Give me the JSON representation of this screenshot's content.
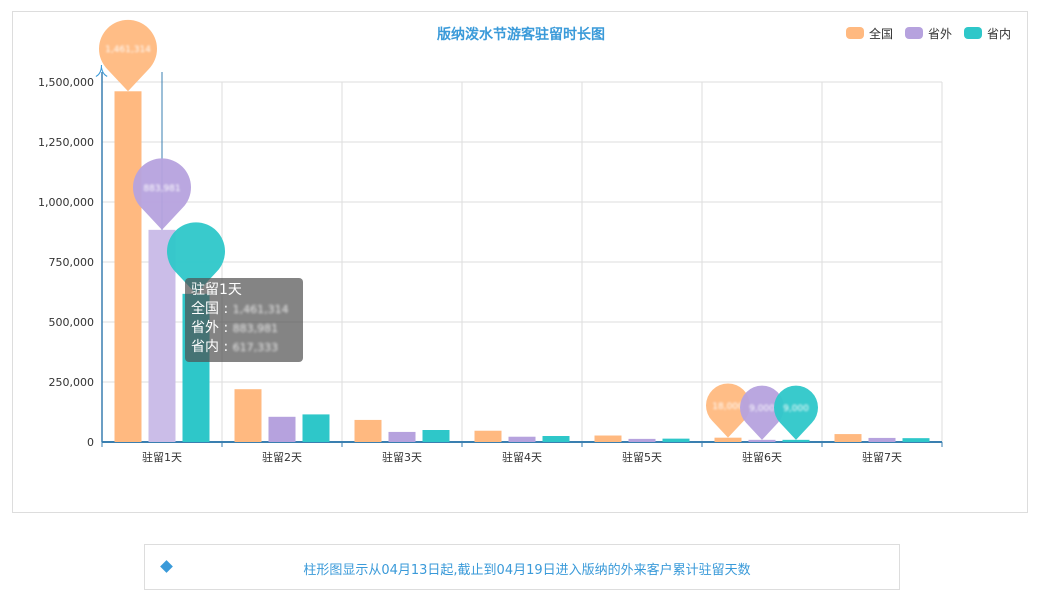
{
  "chart_data": {
    "type": "bar",
    "title": "版纳泼水节游客驻留时长图",
    "ylabel": "人",
    "categories": [
      "驻留1天",
      "驻留2天",
      "驻留3天",
      "驻留4天",
      "驻留5天",
      "驻留6天",
      "驻留7天"
    ],
    "series": [
      {
        "name": "全国",
        "color": "#ffb980",
        "values": [
          1461314,
          220000,
          92000,
          47000,
          27000,
          18000,
          33000
        ]
      },
      {
        "name": "省外",
        "color": "#b6a2de",
        "values": [
          883981,
          105000,
          42000,
          22000,
          13000,
          9000,
          17000
        ]
      },
      {
        "name": "省内",
        "color": "#2ec7c9",
        "values": [
          617333,
          115000,
          50000,
          25000,
          14000,
          9000,
          16000
        ]
      }
    ],
    "ylim": [
      0,
      1500000
    ],
    "yticks": [
      0,
      250000,
      500000,
      750000,
      1000000,
      1250000,
      1500000
    ],
    "ytick_labels": [
      "0",
      "250,000",
      "500,000",
      "750,000",
      "1,000,000",
      "1,250,000",
      "1,500,000"
    ],
    "grid": true,
    "legend_position": "top-right",
    "markpoints": [
      {
        "series": 0,
        "category": 0,
        "label": "1,461,314"
      },
      {
        "series": 1,
        "category": 0,
        "label": "883,981"
      },
      {
        "series": 2,
        "category": 0,
        "label": ""
      },
      {
        "series": 0,
        "category": 5,
        "label": "18,000"
      },
      {
        "series": 1,
        "category": 5,
        "label": "9,000"
      },
      {
        "series": 2,
        "category": 5,
        "label": "9,000"
      }
    ]
  },
  "tooltip": {
    "title": "驻留1天",
    "rows": [
      {
        "name": "全国",
        "value": "1,461,314"
      },
      {
        "name": "省外",
        "value": "883,981"
      },
      {
        "name": "省内",
        "value": "617,333"
      }
    ]
  },
  "footer": {
    "text": "柱形图显示从04月13日起,截止到04月19日进入版纳的外来客户累计驻留天数"
  }
}
